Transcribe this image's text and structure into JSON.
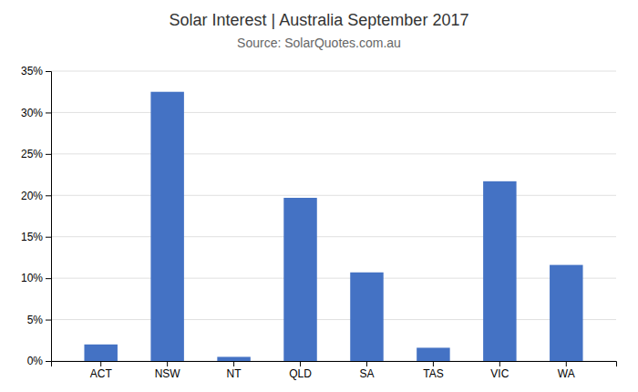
{
  "chart_data": {
    "type": "bar",
    "title": "Solar Interest | Australia September 2017",
    "subtitle": "Source: SolarQuotes.com.au",
    "categories": [
      "ACT",
      "NSW",
      "NT",
      "QLD",
      "SA",
      "TAS",
      "VIC",
      "WA"
    ],
    "values": [
      0.02,
      0.325,
      0.005,
      0.197,
      0.107,
      0.016,
      0.217,
      0.116
    ],
    "color": "#4472c4",
    "ylim": [
      0,
      0.35
    ],
    "yticks": [
      {
        "value": 0,
        "label": "0%"
      },
      {
        "value": 0.05,
        "label": "5%"
      },
      {
        "value": 0.1,
        "label": "10%"
      },
      {
        "value": 0.15,
        "label": "15%"
      },
      {
        "value": 0.2,
        "label": "20%"
      },
      {
        "value": 0.25,
        "label": "25%"
      },
      {
        "value": 0.3,
        "label": "30%"
      },
      {
        "value": 0.35,
        "label": "35%"
      }
    ],
    "grid": true
  }
}
